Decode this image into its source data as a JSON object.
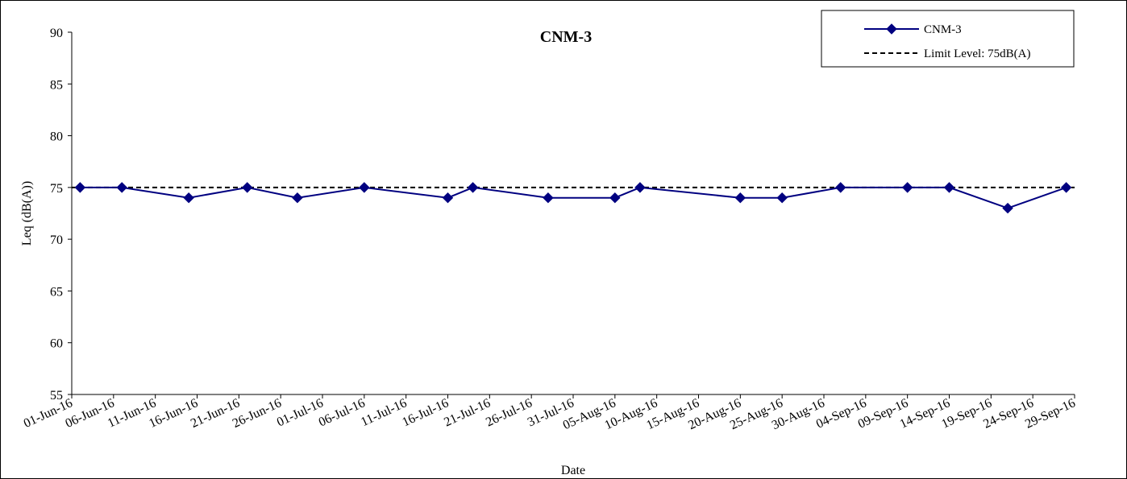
{
  "chart_data": {
    "type": "line",
    "title": "CNM-3",
    "xlabel": "Date",
    "ylabel": "Leq (dB(A))",
    "ylim": [
      55,
      90
    ],
    "yticks": [
      "55",
      "60",
      "65",
      "70",
      "75",
      "80",
      "85",
      "90"
    ],
    "xlim": [
      "2016-06-01",
      "2016-09-29"
    ],
    "xticks": [
      "01-Jun-16",
      "06-Jun-16",
      "11-Jun-16",
      "16-Jun-16",
      "21-Jun-16",
      "26-Jun-16",
      "01-Jul-16",
      "06-Jul-16",
      "11-Jul-16",
      "16-Jul-16",
      "21-Jul-16",
      "26-Jul-16",
      "31-Jul-16",
      "05-Aug-16",
      "10-Aug-16",
      "15-Aug-16",
      "20-Aug-16",
      "25-Aug-16",
      "30-Aug-16",
      "04-Sep-16",
      "09-Sep-16",
      "14-Sep-16",
      "19-Sep-16",
      "24-Sep-16",
      "29-Sep-16"
    ],
    "grid": false,
    "legend_position": "top-right",
    "series": [
      {
        "name": "CNM-3",
        "color": "#000080",
        "marker": "diamond",
        "x": [
          "2016-06-02",
          "2016-06-07",
          "2016-06-15",
          "2016-06-22",
          "2016-06-28",
          "2016-07-06",
          "2016-07-16",
          "2016-07-19",
          "2016-07-28",
          "2016-08-05",
          "2016-08-08",
          "2016-08-20",
          "2016-08-25",
          "2016-09-01",
          "2016-09-09",
          "2016-09-14",
          "2016-09-21",
          "2016-09-28"
        ],
        "values": [
          75,
          75,
          74,
          75,
          74,
          75,
          74,
          75,
          74,
          74,
          75,
          74,
          74,
          75,
          75,
          75,
          73,
          75
        ]
      },
      {
        "name": "Limit Level: 75dB(A)",
        "color": "#000000",
        "style": "dashed",
        "x": [
          "2016-06-01",
          "2016-09-29"
        ],
        "values": [
          75,
          75
        ]
      }
    ]
  }
}
